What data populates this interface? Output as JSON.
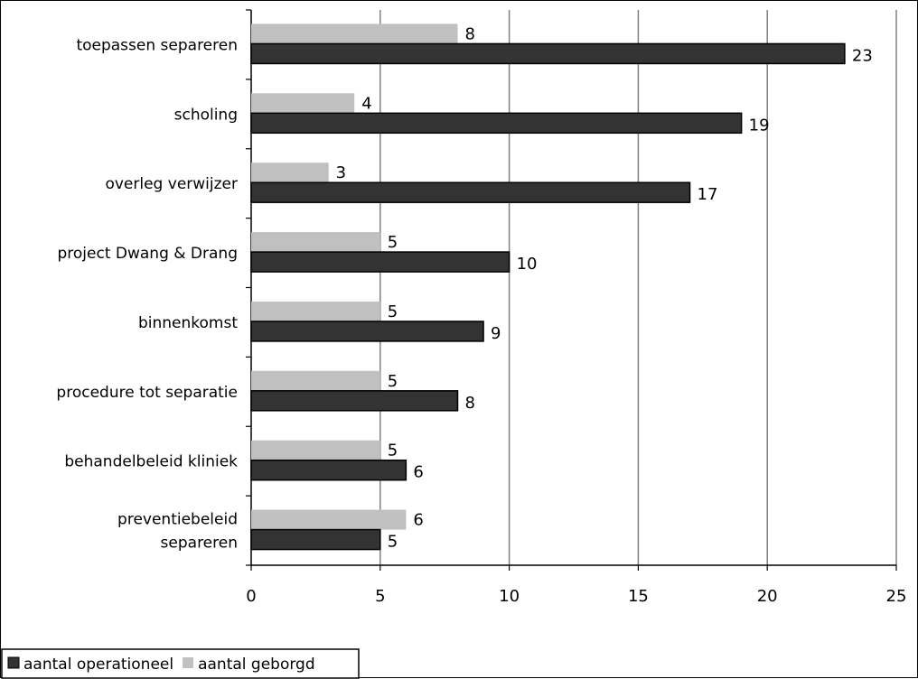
{
  "chart_data": {
    "type": "bar",
    "orientation": "horizontal",
    "categories": [
      [
        "toepassen separeren"
      ],
      [
        "scholing"
      ],
      [
        "overleg verwijzer"
      ],
      [
        "project Dwang & Drang"
      ],
      [
        "binnenkomst"
      ],
      [
        "procedure tot separatie"
      ],
      [
        "behandelbeleid kliniek"
      ],
      [
        "preventiebeleid",
        "separeren"
      ]
    ],
    "series": [
      {
        "name": "aantal geborgd",
        "color": "#c0c0c0",
        "values": [
          8,
          4,
          3,
          5,
          5,
          5,
          5,
          6
        ]
      },
      {
        "name": "aantal operationeel",
        "color": "#333333",
        "values": [
          23,
          19,
          17,
          10,
          9,
          8,
          6,
          5
        ]
      }
    ],
    "xlim": [
      0,
      25
    ],
    "xticks": [
      0,
      5,
      10,
      15,
      20,
      25
    ],
    "grid": true,
    "legend": {
      "placement": "bottom-left",
      "order": [
        "aantal operationeel",
        "aantal geborgd"
      ]
    }
  }
}
